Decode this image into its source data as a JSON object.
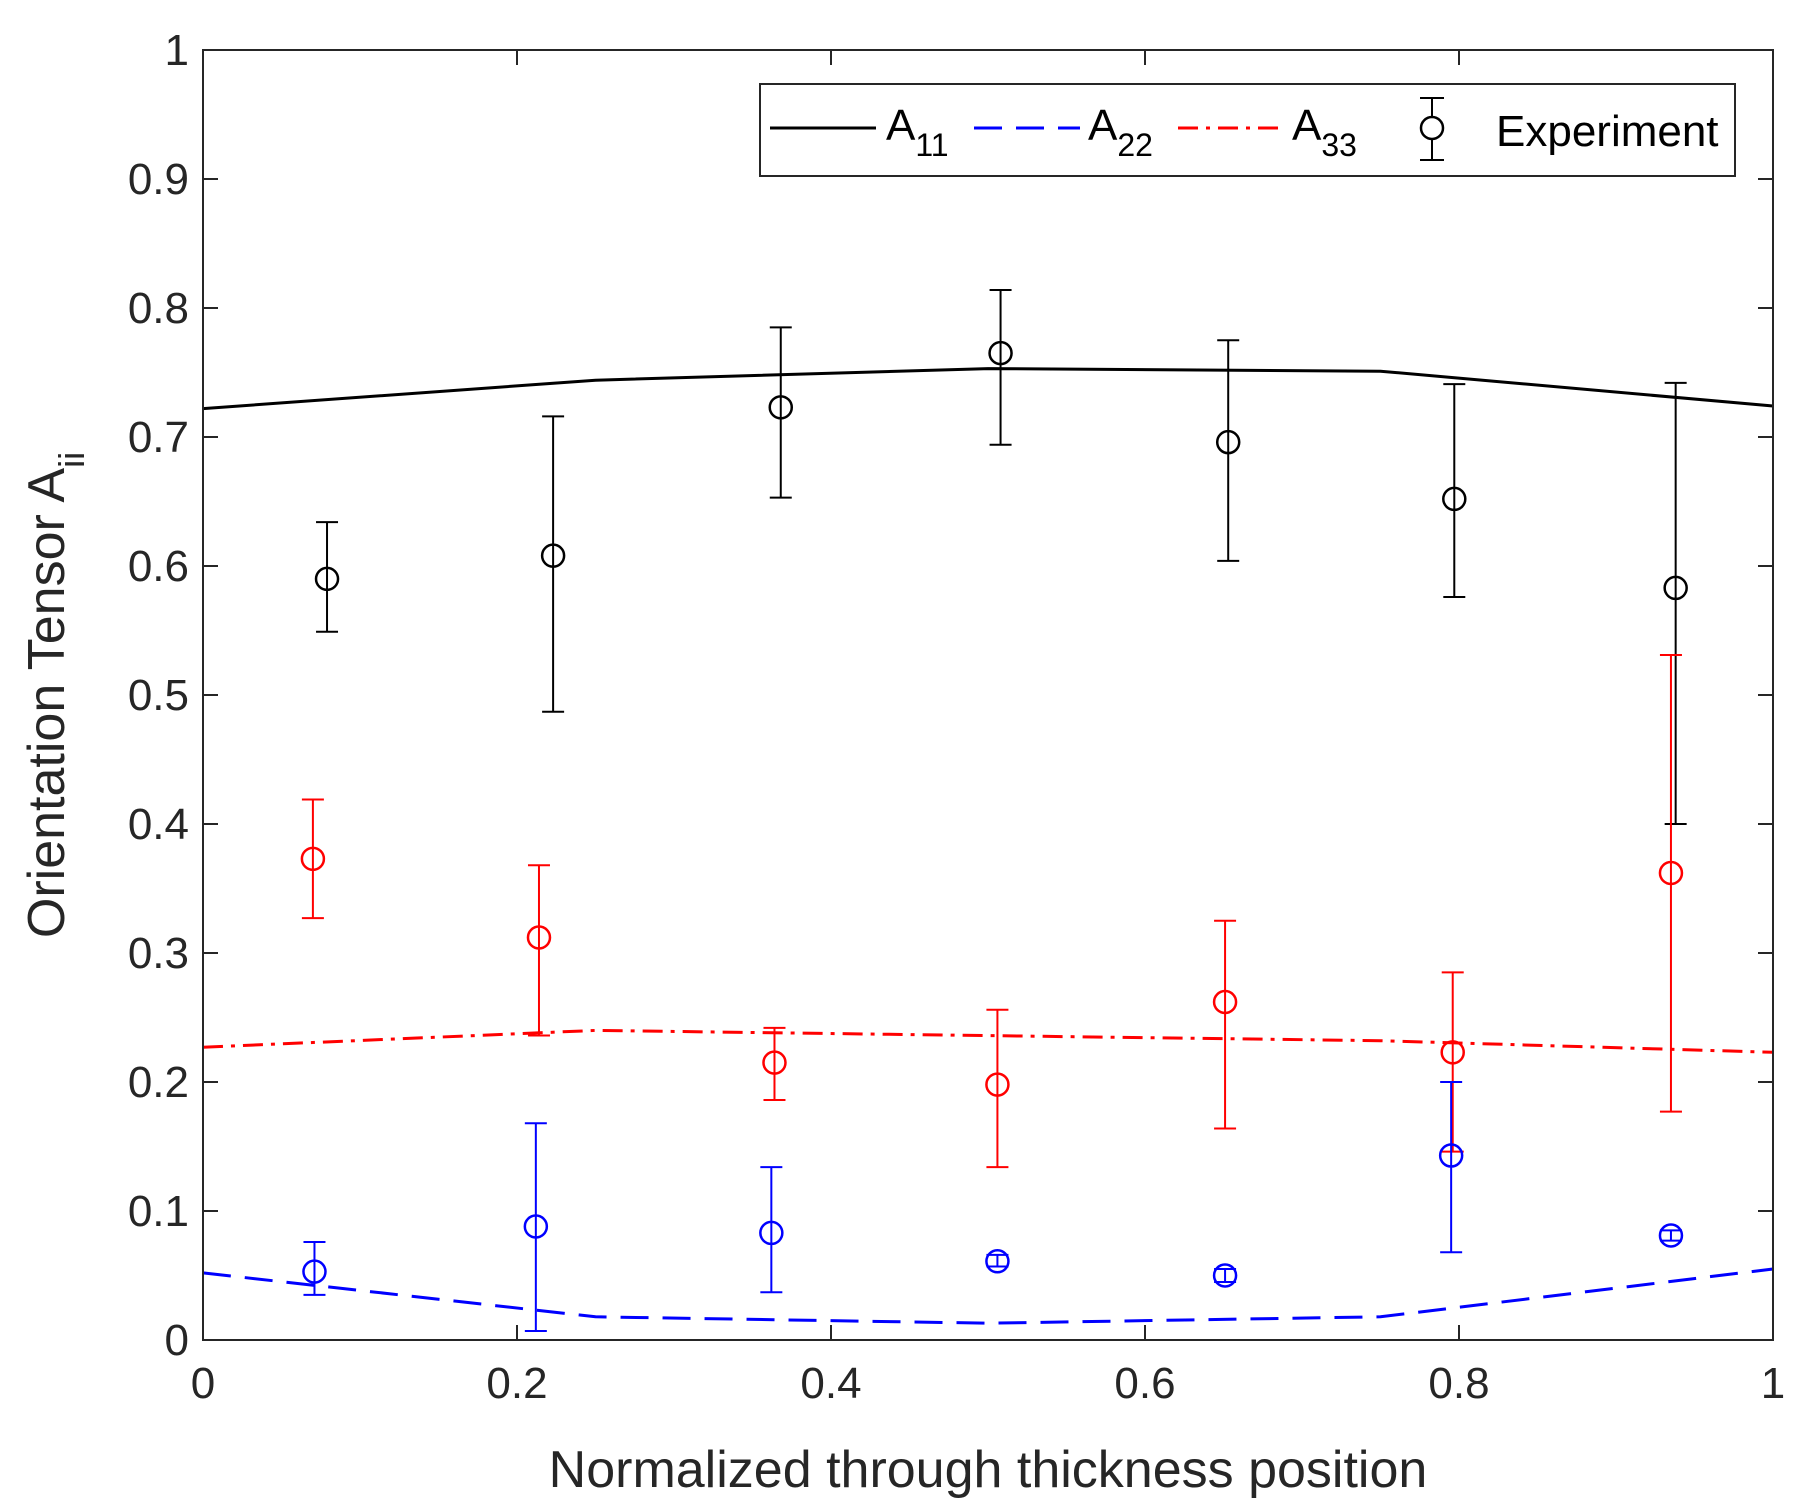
{
  "chart_data": {
    "type": "line",
    "title": "",
    "xlabel": "Normalized through thickness position",
    "ylabel_main": "Orientation Tensor A",
    "ylabel_sub": "ii",
    "xlim": [
      0,
      1
    ],
    "ylim": [
      0,
      1
    ],
    "x_ticks": [
      0,
      0.2,
      0.4,
      0.6,
      0.8,
      1
    ],
    "x_tick_labels": [
      "0",
      "0.2",
      "0.4",
      "0.6",
      "0.8",
      "1"
    ],
    "y_ticks": [
      0,
      0.1,
      0.2,
      0.3,
      0.4,
      0.5,
      0.6,
      0.7,
      0.8,
      0.9,
      1
    ],
    "y_tick_labels": [
      "0",
      "0.1",
      "0.2",
      "0.3",
      "0.4",
      "0.5",
      "0.6",
      "0.7",
      "0.8",
      "0.9",
      "1"
    ],
    "grid": false,
    "legend_position": "top-right",
    "series": [
      {
        "name": "A",
        "name_sub": "11",
        "kind": "line",
        "style": "solid",
        "color": "#000000",
        "x": [
          0,
          0.25,
          0.5,
          0.75,
          1
        ],
        "y": [
          0.722,
          0.744,
          0.753,
          0.751,
          0.724
        ]
      },
      {
        "name": "A",
        "name_sub": "22",
        "kind": "line",
        "style": "dashed",
        "color": "#0000ff",
        "x": [
          0,
          0.25,
          0.5,
          0.75,
          1
        ],
        "y": [
          0.052,
          0.018,
          0.013,
          0.018,
          0.055
        ]
      },
      {
        "name": "A",
        "name_sub": "33",
        "kind": "line",
        "style": "dashdot",
        "color": "#ff0000",
        "x": [
          0,
          0.25,
          0.5,
          0.75,
          1
        ],
        "y": [
          0.227,
          0.24,
          0.236,
          0.232,
          0.223
        ]
      },
      {
        "name": "Experiment",
        "kind": "errorbar",
        "color": "#000000",
        "x": [
          0.079,
          0.223,
          0.368,
          0.508,
          0.653,
          0.797,
          0.938
        ],
        "y": [
          0.59,
          0.608,
          0.723,
          0.765,
          0.696,
          0.652,
          0.583
        ],
        "lower": [
          0.549,
          0.487,
          0.653,
          0.694,
          0.604,
          0.576,
          0.4
        ],
        "upper": [
          0.634,
          0.716,
          0.785,
          0.814,
          0.775,
          0.741,
          0.742
        ]
      },
      {
        "kind": "errorbar",
        "color": "#ff0000",
        "x": [
          0.07,
          0.214,
          0.364,
          0.506,
          0.651,
          0.796,
          0.935
        ],
        "y": [
          0.373,
          0.312,
          0.215,
          0.198,
          0.262,
          0.223,
          0.362
        ],
        "lower": [
          0.327,
          0.236,
          0.186,
          0.134,
          0.164,
          0.146,
          0.177
        ],
        "upper": [
          0.419,
          0.368,
          0.242,
          0.256,
          0.325,
          0.285,
          0.531
        ]
      },
      {
        "kind": "errorbar",
        "color": "#0000ff",
        "x": [
          0.071,
          0.212,
          0.362,
          0.506,
          0.651,
          0.795,
          0.935
        ],
        "y": [
          0.053,
          0.088,
          0.083,
          0.061,
          0.05,
          0.143,
          0.081
        ],
        "lower": [
          0.035,
          0.007,
          0.037,
          0.057,
          0.045,
          0.068,
          0.077
        ],
        "upper": [
          0.076,
          0.168,
          0.134,
          0.066,
          0.055,
          0.2,
          0.085
        ]
      }
    ]
  }
}
